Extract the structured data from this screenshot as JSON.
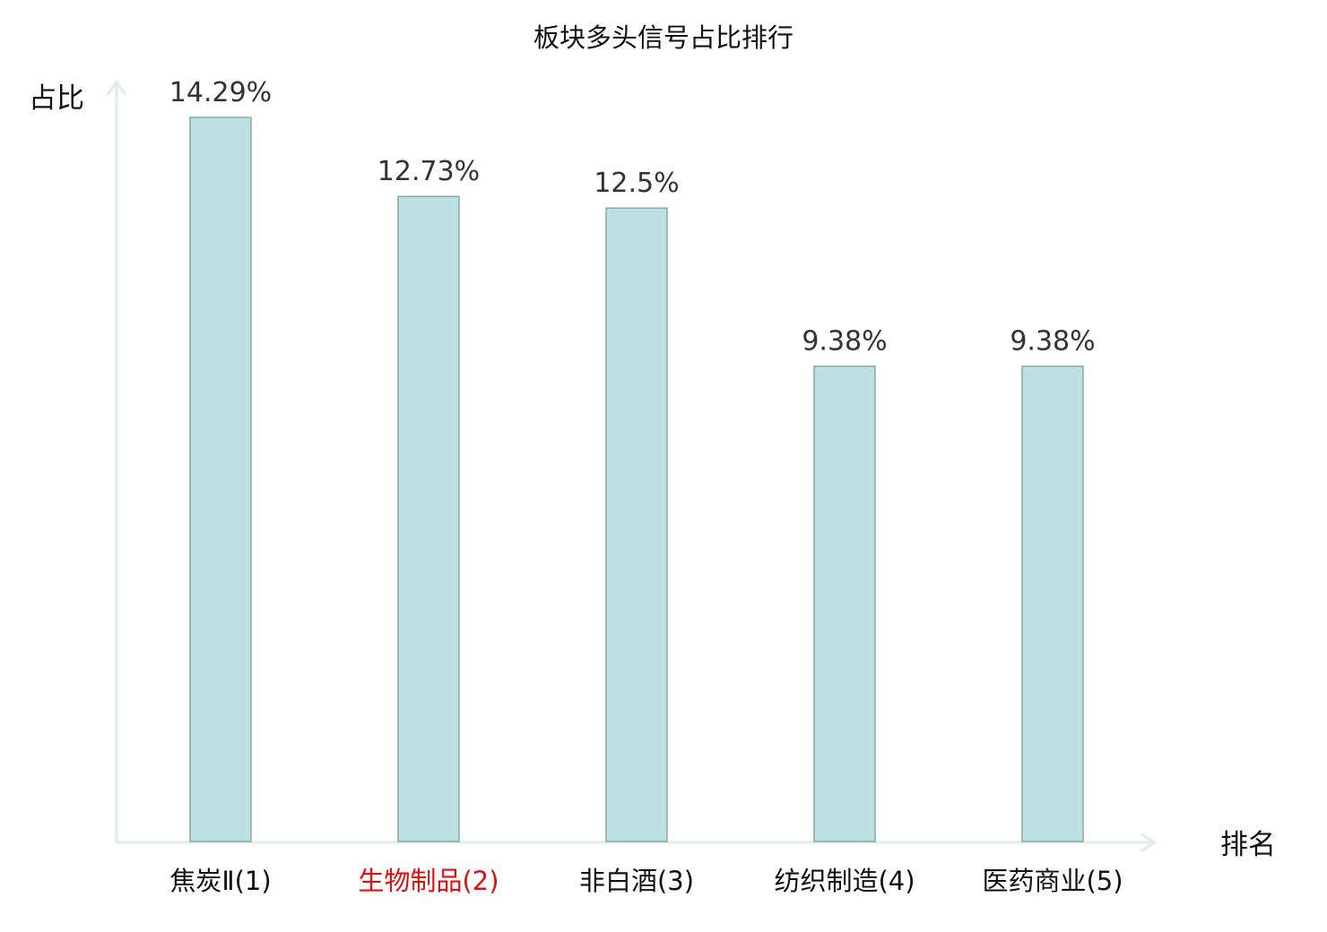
{
  "chart_data": {
    "type": "bar",
    "title": "板块多头信号占比排行",
    "ylabel": "占比",
    "xlabel": "排名",
    "categories": [
      "焦炭Ⅱ(1)",
      "生物制品(2)",
      "非白酒(3)",
      "纺织制造(4)",
      "医药商业(5)"
    ],
    "values": [
      14.29,
      12.73,
      12.5,
      9.38,
      9.38
    ],
    "value_labels": [
      "14.29%",
      "12.73%",
      "12.5%",
      "9.38%",
      "9.38%"
    ],
    "highlight_index": 1,
    "ylim": [
      0,
      14.29
    ],
    "grid": false,
    "legend": "none"
  },
  "colors": {
    "bar_fill": "#bde0e2",
    "bar_stroke": "#8aa8a9",
    "axis": "#dcefed",
    "highlight": "#e01010",
    "category_text": "#111111",
    "value_text": "#333333"
  }
}
